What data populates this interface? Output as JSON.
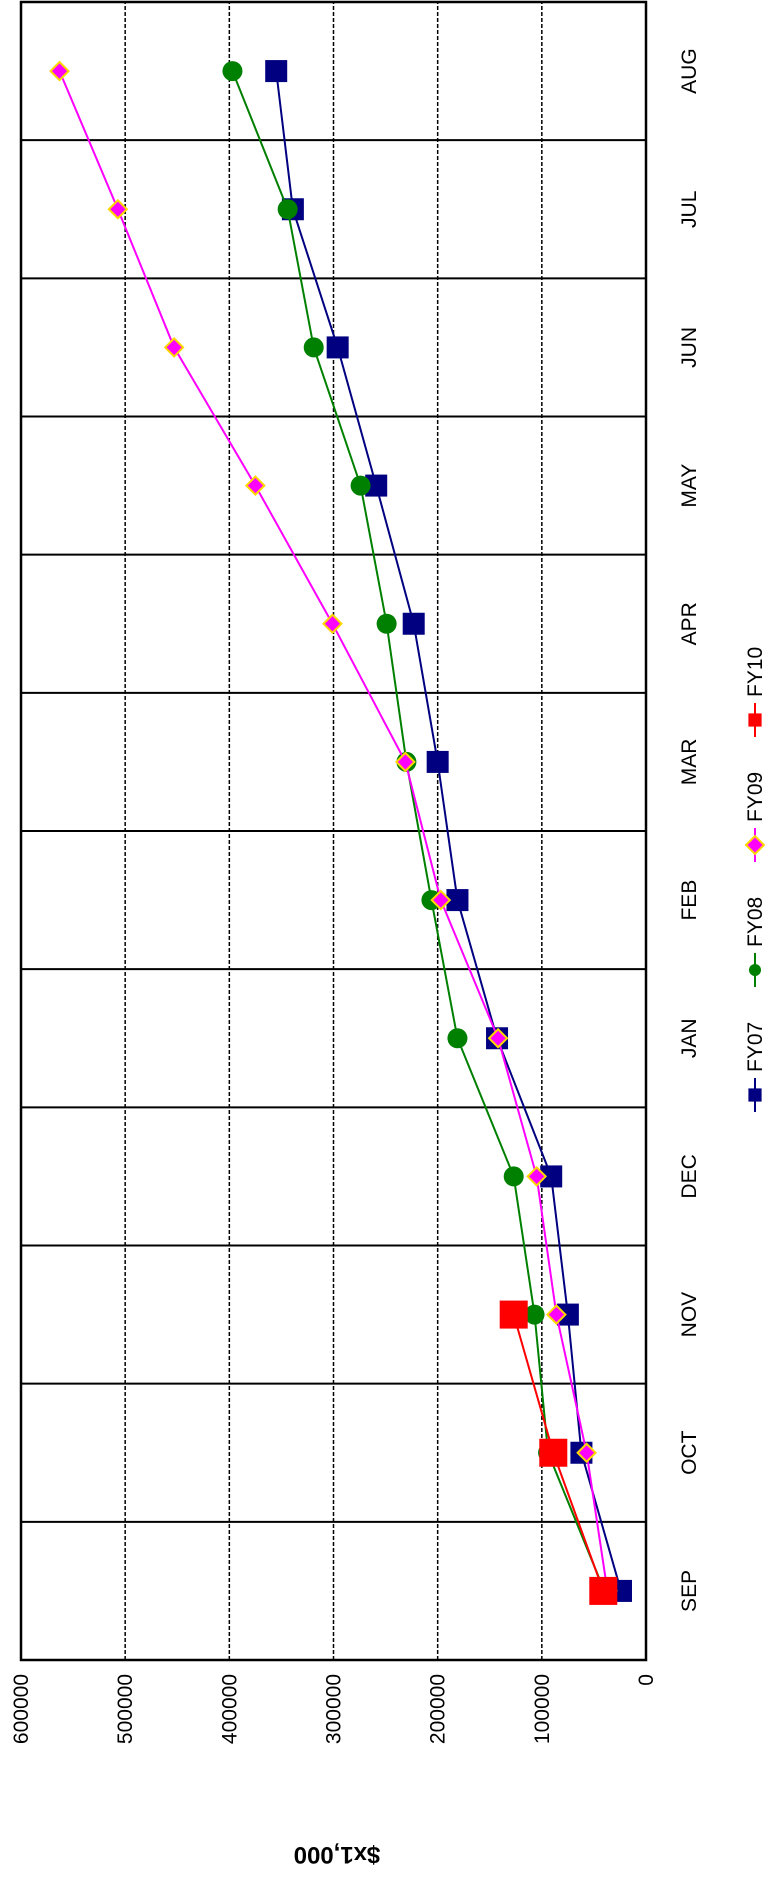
{
  "chart_data": {
    "type": "line",
    "y_label": "$x1,000",
    "categories": [
      "SEP",
      "OCT",
      "NOV",
      "DEC",
      "JAN",
      "FEB",
      "MAR",
      "APR",
      "MAY",
      "JUN",
      "JUL",
      "AUG"
    ],
    "series": [
      {
        "name": "FY07",
        "color": "#000080",
        "marker": "square",
        "values": [
          24000,
          62000,
          75000,
          91000,
          143000,
          181000,
          200000,
          223000,
          259000,
          296000,
          339000,
          355000
        ]
      },
      {
        "name": "FY08",
        "color": "#008000",
        "marker": "circle",
        "values": [
          40000,
          94000,
          107000,
          127000,
          181000,
          206000,
          230000,
          249000,
          274000,
          319000,
          344000,
          397000
        ]
      },
      {
        "name": "FY09",
        "color": "#ff00ff",
        "marker": "diamond",
        "values": [
          37000,
          57000,
          86000,
          105000,
          142000,
          197000,
          231000,
          301000,
          375000,
          453000,
          507000,
          563000
        ]
      },
      {
        "name": "FY10",
        "color": "#ff0000",
        "marker": "bigsquare",
        "values": [
          41000,
          89000,
          127000,
          null,
          null,
          null,
          null,
          null,
          null,
          null,
          null,
          null
        ]
      }
    ],
    "ylim": [
      0,
      600000
    ],
    "yticks": [
      0,
      100000,
      200000,
      300000,
      400000,
      500000,
      600000
    ],
    "grid": true,
    "legend": "bottom"
  }
}
